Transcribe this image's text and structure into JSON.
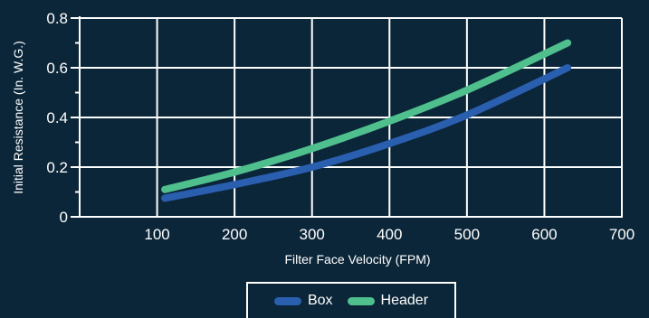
{
  "chart_data": {
    "type": "line",
    "title": "",
    "xlabel": "Filter Face Velocity (FPM)",
    "ylabel": "Initial Resistance (In. W.G.)",
    "xlim": [
      0,
      700
    ],
    "ylim": [
      0,
      0.8
    ],
    "x_ticks": [
      100,
      200,
      300,
      400,
      500,
      600,
      700
    ],
    "y_ticks": [
      0,
      0.2,
      0.4,
      0.6,
      0.8
    ],
    "x_tick_labels": [
      "100",
      "200",
      "300",
      "400",
      "500",
      "600",
      "700"
    ],
    "y_tick_labels": [
      "0",
      "0.2",
      "0.4",
      "0.6",
      "0.8"
    ],
    "grid": true,
    "legend_position": "bottom-center",
    "series": [
      {
        "name": "Box",
        "color": "#2a5fb0",
        "x": [
          110,
          200,
          300,
          400,
          500,
          630
        ],
        "y": [
          0.075,
          0.13,
          0.2,
          0.295,
          0.41,
          0.6
        ]
      },
      {
        "name": "Header",
        "color": "#4fc08d",
        "x": [
          110,
          200,
          300,
          400,
          500,
          630
        ],
        "y": [
          0.11,
          0.18,
          0.275,
          0.385,
          0.51,
          0.7
        ]
      }
    ]
  },
  "colors": {
    "background": "#0b2639",
    "axis": "#ffffff",
    "grid": "#ffffff"
  }
}
